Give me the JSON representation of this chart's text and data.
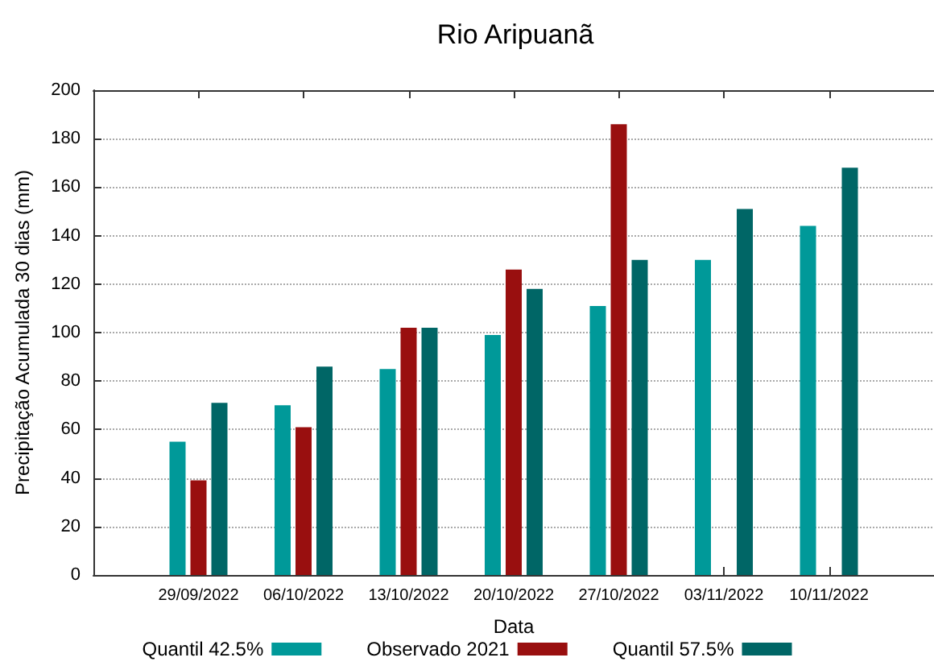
{
  "chart_data": {
    "type": "bar",
    "title": "Rio Aripuanã",
    "xlabel": "Data",
    "ylabel": "Precipitação Acumulada 30 dias (mm)",
    "categories": [
      "29/09/2022",
      "06/10/2022",
      "13/10/2022",
      "20/10/2022",
      "27/10/2022",
      "03/11/2022",
      "10/11/2022"
    ],
    "series": [
      {
        "name": "Quantil 42.5%",
        "color": "#009999",
        "values": [
          55,
          70,
          85,
          99,
          111,
          130,
          144
        ]
      },
      {
        "name": "Observado 2021",
        "color": "#990f0f",
        "values": [
          39,
          61,
          102,
          126,
          186,
          null,
          null
        ]
      },
      {
        "name": "Quantil 57.5%",
        "color": "#006666",
        "values": [
          71,
          86,
          102,
          118,
          130,
          151,
          168
        ]
      }
    ],
    "ylim": [
      0,
      200
    ],
    "yticks": [
      0,
      20,
      40,
      60,
      80,
      100,
      120,
      140,
      160,
      180,
      200
    ],
    "grid": "y",
    "legend": "bottom"
  }
}
